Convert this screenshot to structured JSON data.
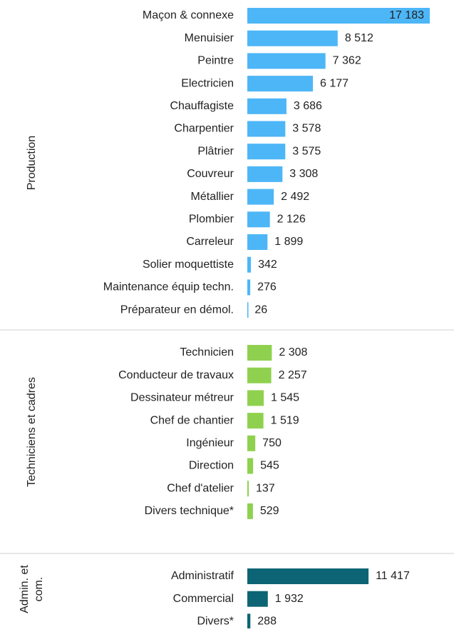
{
  "chart_data": {
    "type": "bar",
    "groups": [
      {
        "name": [
          "Production"
        ],
        "color": "#4db6f7",
        "categories": [
          "Maçon & connexe",
          "Menuisier",
          "Peintre",
          "Electricien",
          "Chauffagiste",
          "Charpentier",
          "Plâtrier",
          "Couvreur",
          "Métallier",
          "Plombier",
          "Carreleur",
          "Solier moquettiste",
          "Maintenance équip techn.",
          "Préparateur en démol."
        ],
        "values": [
          17183,
          8512,
          7362,
          6177,
          3686,
          3578,
          3575,
          3308,
          2492,
          2126,
          1899,
          342,
          276,
          26
        ],
        "value_labels": [
          "17 183",
          "8 512",
          "7 362",
          "6 177",
          "3 686",
          "3 578",
          "3 575",
          "3 308",
          "2 492",
          "2 126",
          "1 899",
          "342",
          "276",
          "26"
        ]
      },
      {
        "name": [
          "Techniciens et cadres"
        ],
        "color": "#8fd14f",
        "categories": [
          "Technicien",
          "Conducteur de travaux",
          "Dessinateur métreur",
          "Chef de chantier",
          "Ingénieur",
          "Direction",
          "Chef d'atelier",
          "Divers technique*"
        ],
        "values": [
          2308,
          2257,
          1545,
          1519,
          750,
          545,
          137,
          529
        ],
        "value_labels": [
          "2 308",
          "2 257",
          "1 545",
          "1 519",
          "750",
          "545",
          "137",
          "529"
        ]
      },
      {
        "name": [
          "Admin. et",
          "com."
        ],
        "color": "#0d6474",
        "categories": [
          "Administratif",
          "Commercial",
          "Divers*"
        ],
        "values": [
          11417,
          1932,
          288
        ],
        "value_labels": [
          "11 417",
          "1 932",
          "288"
        ]
      }
    ]
  }
}
